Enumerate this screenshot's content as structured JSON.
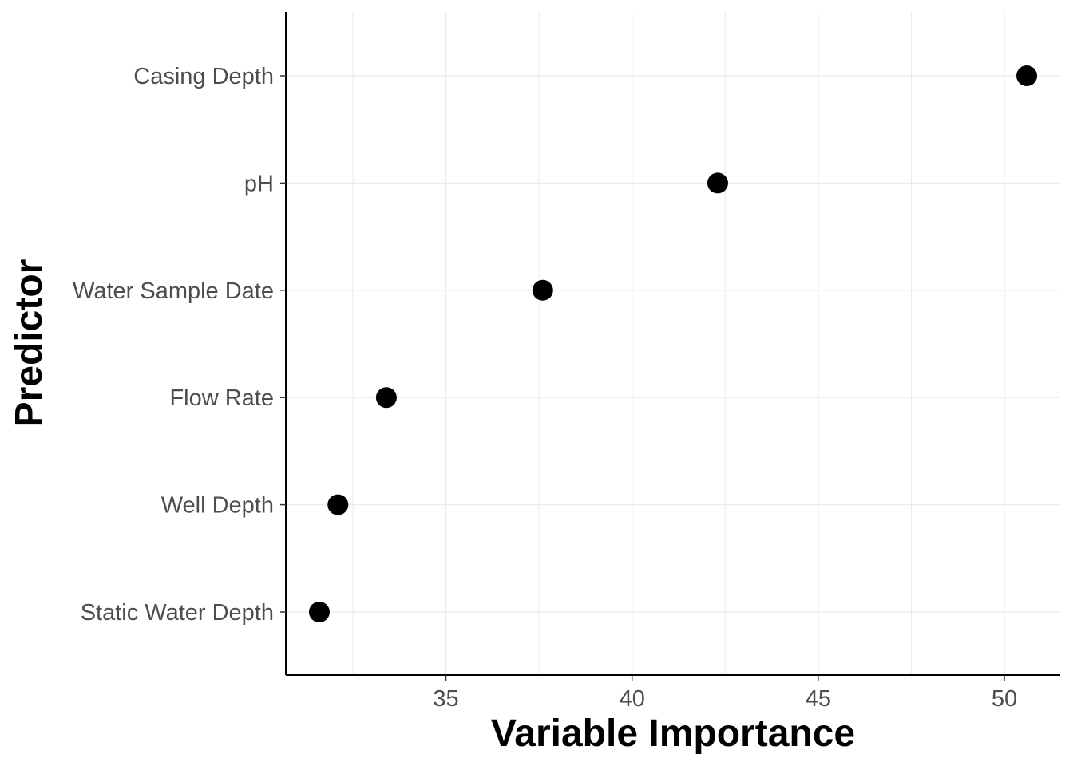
{
  "chart_data": {
    "type": "scatter",
    "title": "",
    "xlabel": "Variable Importance",
    "ylabel": "Predictor",
    "categories": [
      "Static Water Depth",
      "Well Depth",
      "Flow Rate",
      "Water Sample Date",
      "pH",
      "Casing Depth"
    ],
    "values": [
      31.6,
      32.1,
      33.4,
      37.6,
      42.3,
      50.6
    ],
    "xlim": [
      30.7,
      51.5
    ],
    "xticks": [
      35,
      40,
      45,
      50
    ],
    "xminor": [
      32.5,
      37.5,
      42.5,
      47.5
    ],
    "grid": true,
    "legend": "none",
    "colors": {
      "point": "#000000",
      "grid": "#ebebeb",
      "axis": "#000000",
      "tick_text": "#4d4d4d"
    }
  }
}
